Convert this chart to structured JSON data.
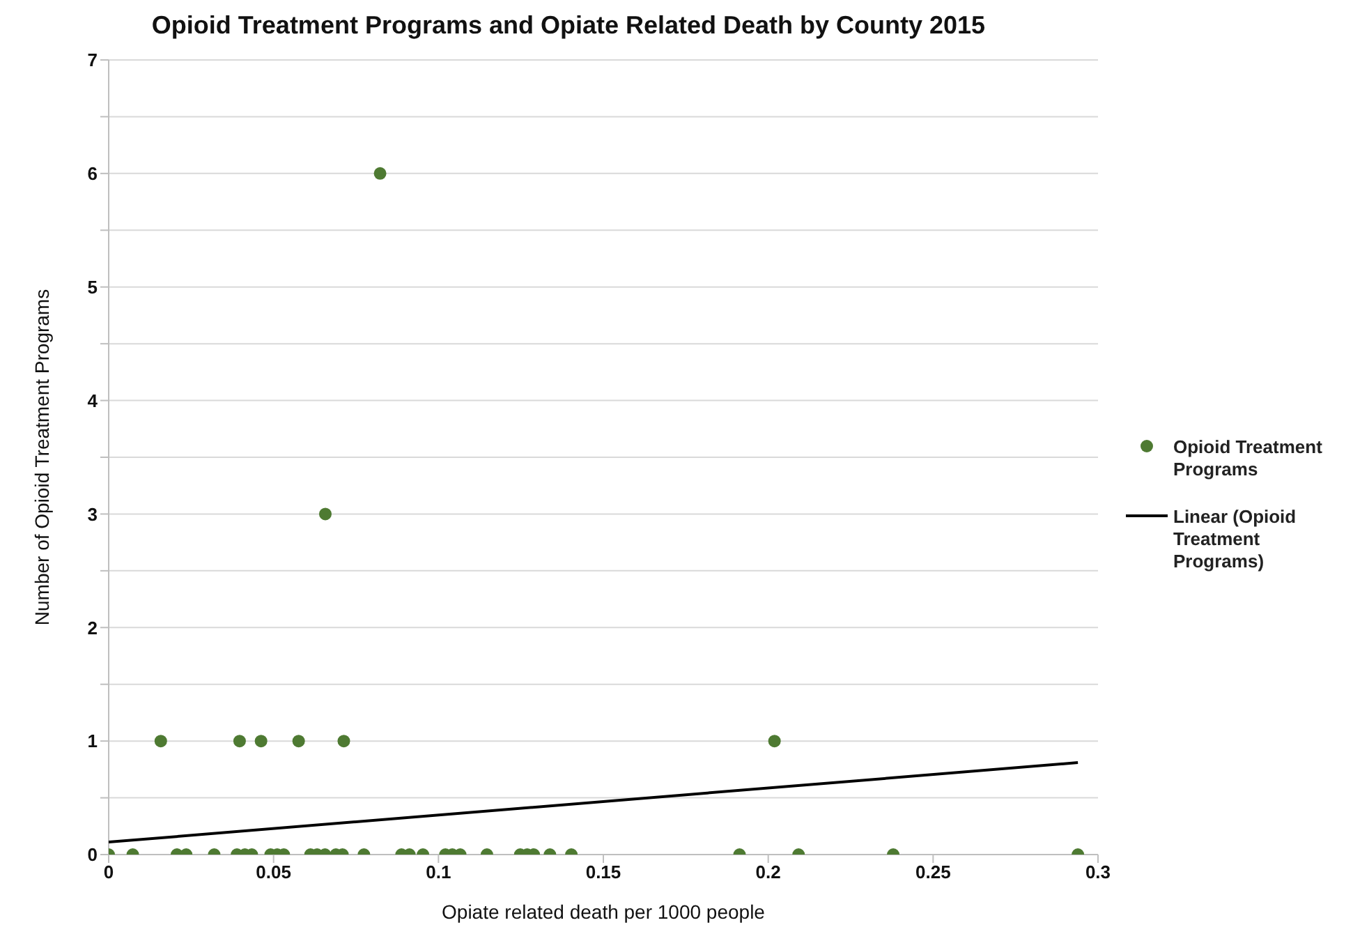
{
  "chart_data": {
    "type": "scatter",
    "title": "Opioid Treatment Programs and Opiate Related Death by County 2015",
    "xlabel": "Opiate related death per 1000 people",
    "ylabel": "Number of Opioid Treatment Programs",
    "xlim": [
      0,
      0.3
    ],
    "xticks": [
      0,
      0.05,
      0.1,
      0.15,
      0.2,
      0.25,
      0.3
    ],
    "ylim": [
      0,
      7
    ],
    "yticks": [
      0,
      {
        "value": 0.5,
        "label": null
      },
      1,
      {
        "value": 1.5,
        "label": null
      },
      2,
      {
        "value": 2.5,
        "label": null
      },
      3,
      {
        "value": 3.5,
        "label": null
      },
      4,
      {
        "value": 4.5,
        "label": null
      },
      5,
      {
        "value": 5.5,
        "label": null
      },
      6,
      {
        "value": 6.5,
        "label": null
      },
      7
    ],
    "grid": "y",
    "legend": "right",
    "series": [
      {
        "name": "Opioid Treatment Programs",
        "marker": "circle",
        "color": "#4e7a32",
        "x": [
          0,
          0.0073,
          0.0207,
          0.0235,
          0.032,
          0.0389,
          0.0413,
          0.0434,
          0.0491,
          0.0511,
          0.0531,
          0.0612,
          0.0632,
          0.0656,
          0.0689,
          0.0709,
          0.0774,
          0.0888,
          0.0912,
          0.0953,
          0.1021,
          0.1042,
          0.1066,
          0.1147,
          0.1248,
          0.1269,
          0.1289,
          0.1338,
          0.1403,
          0.1913,
          0.2092,
          0.2379,
          0.2939,
          0.0158,
          0.0397,
          0.0462,
          0.0576,
          0.0713,
          0.2019,
          0.0657,
          0.0823
        ],
        "values": [
          0,
          0,
          0,
          0,
          0,
          0,
          0,
          0,
          0,
          0,
          0,
          0,
          0,
          0,
          0,
          0,
          0,
          0,
          0,
          0,
          0,
          0,
          0,
          0,
          0,
          0,
          0,
          0,
          0,
          0,
          0,
          0,
          0,
          1,
          1,
          1,
          1,
          1,
          1,
          3,
          6
        ]
      },
      {
        "name": "Linear (Opioid Treatment Programs)",
        "type": "line",
        "marker": "none",
        "line_style": "solid",
        "color": "#000000",
        "x": [
          0,
          0.2939
        ],
        "values": [
          0.11,
          0.81
        ]
      }
    ]
  }
}
